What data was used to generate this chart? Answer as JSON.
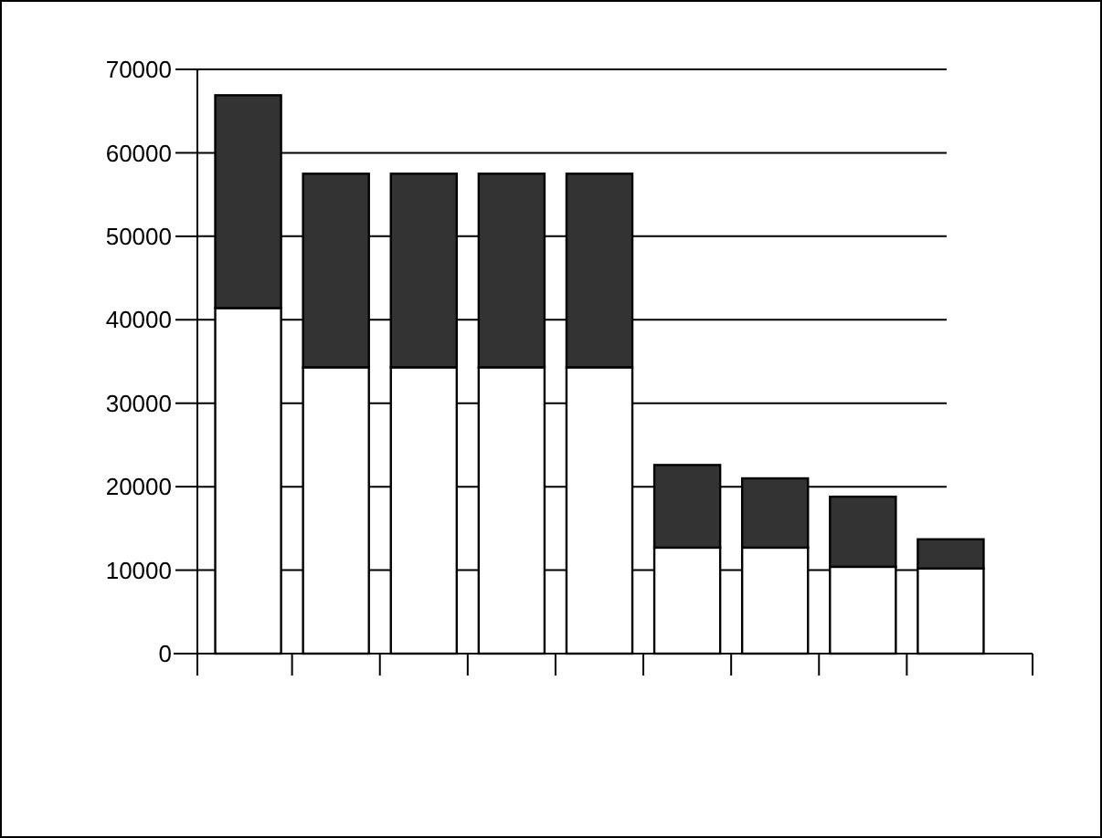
{
  "chart_data": {
    "type": "bar",
    "stacked": true,
    "categories": [
      null,
      null,
      null,
      null,
      null,
      null,
      null,
      null,
      null
    ],
    "series": [
      {
        "color": "#ffffff",
        "values": [
          41400,
          34300,
          34300,
          34300,
          34300,
          12700,
          12700,
          10400,
          10200
        ]
      },
      {
        "color": "#333333",
        "values": [
          25500,
          23200,
          23200,
          23200,
          23200,
          9900,
          8300,
          8400,
          3500
        ]
      }
    ],
    "ylim": [
      0,
      70000
    ],
    "yticks": [
      0,
      10000,
      20000,
      30000,
      40000,
      50000,
      60000,
      70000
    ],
    "grid": "y"
  }
}
